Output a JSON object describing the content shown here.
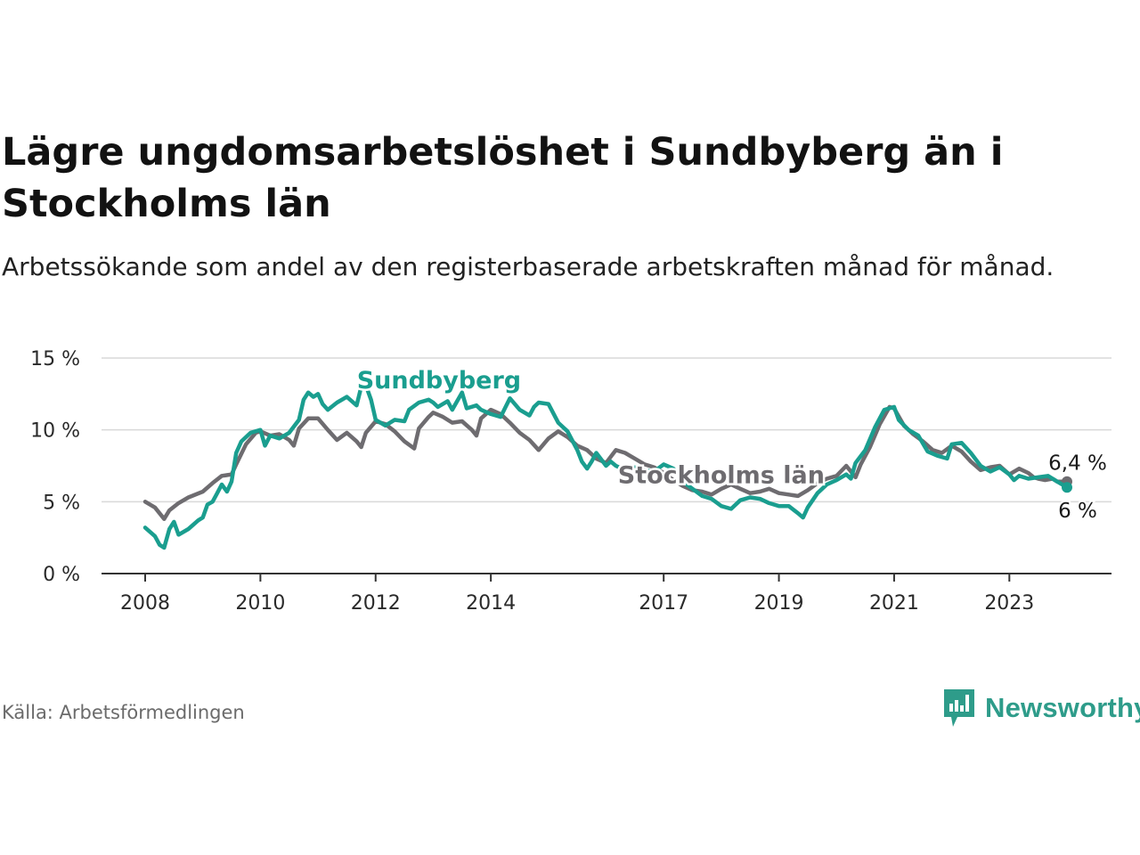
{
  "title": "Lägre ungdomsarbetslöshet i Sundbyberg än i Stockholms län",
  "subtitle": "Arbetssökande som andel av den registerbaserade arbetskraften månad för månad.",
  "source": "Källa: Arbetsförmedlingen",
  "brand": {
    "name": "Newsworthy",
    "icon": "newsworthy-logo-icon",
    "color": "#2e9c8a"
  },
  "colors": {
    "sundbyberg": "#1a9e8f",
    "stockholm": "#6e6c70",
    "grid": "#d9d9d9",
    "axis": "#333333"
  },
  "chart_data": {
    "type": "line",
    "title": "Lägre ungdomsarbetslöshet i Sundbyberg än i Stockholms län",
    "xlabel": "",
    "ylabel": "",
    "xlim": [
      2008,
      2024.0
    ],
    "ylim": [
      0,
      15
    ],
    "grid": true,
    "legend": "inline labels",
    "y_ticks": [
      {
        "value": 0,
        "label": "0 %"
      },
      {
        "value": 5,
        "label": "5 %"
      },
      {
        "value": 10,
        "label": "10 %"
      },
      {
        "value": 15,
        "label": "15 %"
      }
    ],
    "x_ticks": [
      {
        "value": 2008,
        "label": "2008"
      },
      {
        "value": 2010,
        "label": "2010"
      },
      {
        "value": 2012,
        "label": "2012"
      },
      {
        "value": 2014,
        "label": "2014"
      },
      {
        "value": 2017,
        "label": "2017"
      },
      {
        "value": 2019,
        "label": "2019"
      },
      {
        "value": 2021,
        "label": "2021"
      },
      {
        "value": 2023,
        "label": "2023"
      }
    ],
    "series": [
      {
        "name": "Stockholms län",
        "color": "#6e6c70",
        "end_label": "6,4 %",
        "points": [
          [
            2008.0,
            5.0
          ],
          [
            2008.17,
            4.6
          ],
          [
            2008.33,
            3.8
          ],
          [
            2008.42,
            4.4
          ],
          [
            2008.58,
            4.9
          ],
          [
            2008.75,
            5.3
          ],
          [
            2009.0,
            5.7
          ],
          [
            2009.17,
            6.3
          ],
          [
            2009.33,
            6.8
          ],
          [
            2009.5,
            6.9
          ],
          [
            2009.58,
            7.6
          ],
          [
            2009.75,
            9.0
          ],
          [
            2009.92,
            9.8
          ],
          [
            2010.0,
            9.9
          ],
          [
            2010.17,
            9.6
          ],
          [
            2010.33,
            9.7
          ],
          [
            2010.5,
            9.3
          ],
          [
            2010.58,
            8.9
          ],
          [
            2010.67,
            10.1
          ],
          [
            2010.83,
            10.8
          ],
          [
            2011.0,
            10.8
          ],
          [
            2011.17,
            10.0
          ],
          [
            2011.33,
            9.3
          ],
          [
            2011.5,
            9.8
          ],
          [
            2011.67,
            9.2
          ],
          [
            2011.75,
            8.8
          ],
          [
            2011.83,
            9.8
          ],
          [
            2012.0,
            10.6
          ],
          [
            2012.17,
            10.4
          ],
          [
            2012.33,
            9.9
          ],
          [
            2012.5,
            9.2
          ],
          [
            2012.67,
            8.7
          ],
          [
            2012.75,
            10.1
          ],
          [
            2012.92,
            10.9
          ],
          [
            2013.0,
            11.2
          ],
          [
            2013.17,
            10.9
          ],
          [
            2013.33,
            10.5
          ],
          [
            2013.5,
            10.6
          ],
          [
            2013.67,
            10.0
          ],
          [
            2013.75,
            9.6
          ],
          [
            2013.83,
            10.8
          ],
          [
            2014.0,
            11.4
          ],
          [
            2014.17,
            11.1
          ],
          [
            2014.33,
            10.5
          ],
          [
            2014.5,
            9.8
          ],
          [
            2014.67,
            9.3
          ],
          [
            2014.83,
            8.6
          ],
          [
            2015.0,
            9.4
          ],
          [
            2015.17,
            9.9
          ],
          [
            2015.33,
            9.5
          ],
          [
            2015.5,
            8.9
          ],
          [
            2015.67,
            8.6
          ],
          [
            2015.83,
            8.0
          ],
          [
            2016.0,
            7.7
          ],
          [
            2016.17,
            8.6
          ],
          [
            2016.33,
            8.4
          ],
          [
            2016.5,
            8.0
          ],
          [
            2016.67,
            7.6
          ],
          [
            2016.83,
            7.4
          ],
          [
            2017.0,
            7.0
          ],
          [
            2017.17,
            6.5
          ],
          [
            2017.33,
            6.1
          ],
          [
            2017.5,
            5.8
          ],
          [
            2017.67,
            5.7
          ],
          [
            2017.83,
            5.5
          ],
          [
            2018.0,
            5.9
          ],
          [
            2018.17,
            6.2
          ],
          [
            2018.33,
            5.9
          ],
          [
            2018.5,
            5.6
          ],
          [
            2018.67,
            5.7
          ],
          [
            2018.83,
            5.9
          ],
          [
            2019.0,
            5.6
          ],
          [
            2019.17,
            5.5
          ],
          [
            2019.33,
            5.4
          ],
          [
            2019.5,
            5.8
          ],
          [
            2019.67,
            6.3
          ],
          [
            2019.83,
            6.6
          ],
          [
            2020.0,
            6.8
          ],
          [
            2020.17,
            7.5
          ],
          [
            2020.33,
            6.7
          ],
          [
            2020.42,
            7.6
          ],
          [
            2020.58,
            8.8
          ],
          [
            2020.75,
            10.4
          ],
          [
            2020.92,
            11.6
          ],
          [
            2021.0,
            11.5
          ],
          [
            2021.17,
            10.3
          ],
          [
            2021.33,
            9.7
          ],
          [
            2021.5,
            9.2
          ],
          [
            2021.67,
            8.6
          ],
          [
            2021.83,
            8.4
          ],
          [
            2022.0,
            8.9
          ],
          [
            2022.17,
            8.5
          ],
          [
            2022.33,
            7.8
          ],
          [
            2022.5,
            7.2
          ],
          [
            2022.67,
            7.4
          ],
          [
            2022.83,
            7.5
          ],
          [
            2023.0,
            6.9
          ],
          [
            2023.17,
            7.3
          ],
          [
            2023.33,
            7.0
          ],
          [
            2023.42,
            6.7
          ],
          [
            2023.5,
            6.6
          ],
          [
            2023.62,
            6.5
          ],
          [
            2023.75,
            6.6
          ],
          [
            2023.83,
            6.4
          ],
          [
            2024.0,
            6.4
          ]
        ]
      },
      {
        "name": "Sundbyberg",
        "color": "#1a9e8f",
        "end_label": "6 %",
        "points": [
          [
            2008.0,
            3.2
          ],
          [
            2008.17,
            2.6
          ],
          [
            2008.25,
            2.0
          ],
          [
            2008.33,
            1.8
          ],
          [
            2008.42,
            3.1
          ],
          [
            2008.5,
            3.6
          ],
          [
            2008.58,
            2.7
          ],
          [
            2008.75,
            3.1
          ],
          [
            2008.92,
            3.7
          ],
          [
            2009.0,
            3.9
          ],
          [
            2009.08,
            4.8
          ],
          [
            2009.17,
            5.0
          ],
          [
            2009.25,
            5.6
          ],
          [
            2009.33,
            6.2
          ],
          [
            2009.42,
            5.7
          ],
          [
            2009.5,
            6.4
          ],
          [
            2009.58,
            8.4
          ],
          [
            2009.67,
            9.2
          ],
          [
            2009.83,
            9.8
          ],
          [
            2010.0,
            10.0
          ],
          [
            2010.08,
            8.9
          ],
          [
            2010.17,
            9.6
          ],
          [
            2010.33,
            9.4
          ],
          [
            2010.5,
            9.8
          ],
          [
            2010.67,
            10.7
          ],
          [
            2010.75,
            12.1
          ],
          [
            2010.83,
            12.6
          ],
          [
            2010.92,
            12.3
          ],
          [
            2011.0,
            12.5
          ],
          [
            2011.08,
            11.8
          ],
          [
            2011.17,
            11.4
          ],
          [
            2011.33,
            11.9
          ],
          [
            2011.5,
            12.3
          ],
          [
            2011.67,
            11.7
          ],
          [
            2011.75,
            13.0
          ],
          [
            2011.83,
            13.1
          ],
          [
            2011.92,
            12.1
          ],
          [
            2012.0,
            10.7
          ],
          [
            2012.17,
            10.3
          ],
          [
            2012.33,
            10.7
          ],
          [
            2012.5,
            10.6
          ],
          [
            2012.58,
            11.4
          ],
          [
            2012.75,
            11.9
          ],
          [
            2012.92,
            12.1
          ],
          [
            2013.0,
            11.9
          ],
          [
            2013.08,
            11.6
          ],
          [
            2013.25,
            12.0
          ],
          [
            2013.33,
            11.4
          ],
          [
            2013.5,
            12.6
          ],
          [
            2013.58,
            11.5
          ],
          [
            2013.75,
            11.7
          ],
          [
            2013.83,
            11.4
          ],
          [
            2014.0,
            11.1
          ],
          [
            2014.17,
            10.9
          ],
          [
            2014.33,
            12.2
          ],
          [
            2014.5,
            11.4
          ],
          [
            2014.67,
            11.0
          ],
          [
            2014.75,
            11.6
          ],
          [
            2014.83,
            11.9
          ],
          [
            2015.0,
            11.8
          ],
          [
            2015.17,
            10.5
          ],
          [
            2015.33,
            9.9
          ],
          [
            2015.5,
            8.6
          ],
          [
            2015.58,
            7.8
          ],
          [
            2015.67,
            7.3
          ],
          [
            2015.75,
            7.8
          ],
          [
            2015.83,
            8.4
          ],
          [
            2016.0,
            7.5
          ],
          [
            2016.08,
            7.8
          ],
          [
            2016.17,
            7.5
          ],
          [
            2016.33,
            7.2
          ],
          [
            2016.5,
            7.4
          ],
          [
            2016.67,
            7.2
          ],
          [
            2016.83,
            7.1
          ],
          [
            2017.0,
            7.6
          ],
          [
            2017.17,
            7.3
          ],
          [
            2017.33,
            6.4
          ],
          [
            2017.5,
            5.9
          ],
          [
            2017.67,
            5.4
          ],
          [
            2017.83,
            5.2
          ],
          [
            2018.0,
            4.7
          ],
          [
            2018.17,
            4.5
          ],
          [
            2018.33,
            5.1
          ],
          [
            2018.5,
            5.3
          ],
          [
            2018.67,
            5.2
          ],
          [
            2018.83,
            4.9
          ],
          [
            2019.0,
            4.7
          ],
          [
            2019.17,
            4.7
          ],
          [
            2019.33,
            4.2
          ],
          [
            2019.42,
            3.9
          ],
          [
            2019.5,
            4.6
          ],
          [
            2019.67,
            5.6
          ],
          [
            2019.83,
            6.2
          ],
          [
            2020.0,
            6.5
          ],
          [
            2020.17,
            6.9
          ],
          [
            2020.25,
            6.6
          ],
          [
            2020.33,
            7.7
          ],
          [
            2020.5,
            8.6
          ],
          [
            2020.67,
            10.2
          ],
          [
            2020.83,
            11.4
          ],
          [
            2021.0,
            11.6
          ],
          [
            2021.08,
            10.7
          ],
          [
            2021.25,
            10.0
          ],
          [
            2021.42,
            9.6
          ],
          [
            2021.58,
            8.5
          ],
          [
            2021.75,
            8.2
          ],
          [
            2021.92,
            8.0
          ],
          [
            2022.0,
            9.0
          ],
          [
            2022.17,
            9.1
          ],
          [
            2022.33,
            8.4
          ],
          [
            2022.5,
            7.5
          ],
          [
            2022.67,
            7.1
          ],
          [
            2022.83,
            7.4
          ],
          [
            2023.0,
            6.9
          ],
          [
            2023.08,
            6.5
          ],
          [
            2023.17,
            6.8
          ],
          [
            2023.33,
            6.6
          ],
          [
            2023.5,
            6.7
          ],
          [
            2023.67,
            6.8
          ],
          [
            2023.83,
            6.4
          ],
          [
            2024.0,
            6.0
          ]
        ]
      }
    ],
    "inline_labels": [
      {
        "series": "Sundbyberg",
        "text": "Sundbyberg",
        "x": 2013.1,
        "y": 12.9
      },
      {
        "series": "Stockholms län",
        "text": "Stockholms län",
        "x": 2018.0,
        "y": 6.3
      }
    ]
  }
}
